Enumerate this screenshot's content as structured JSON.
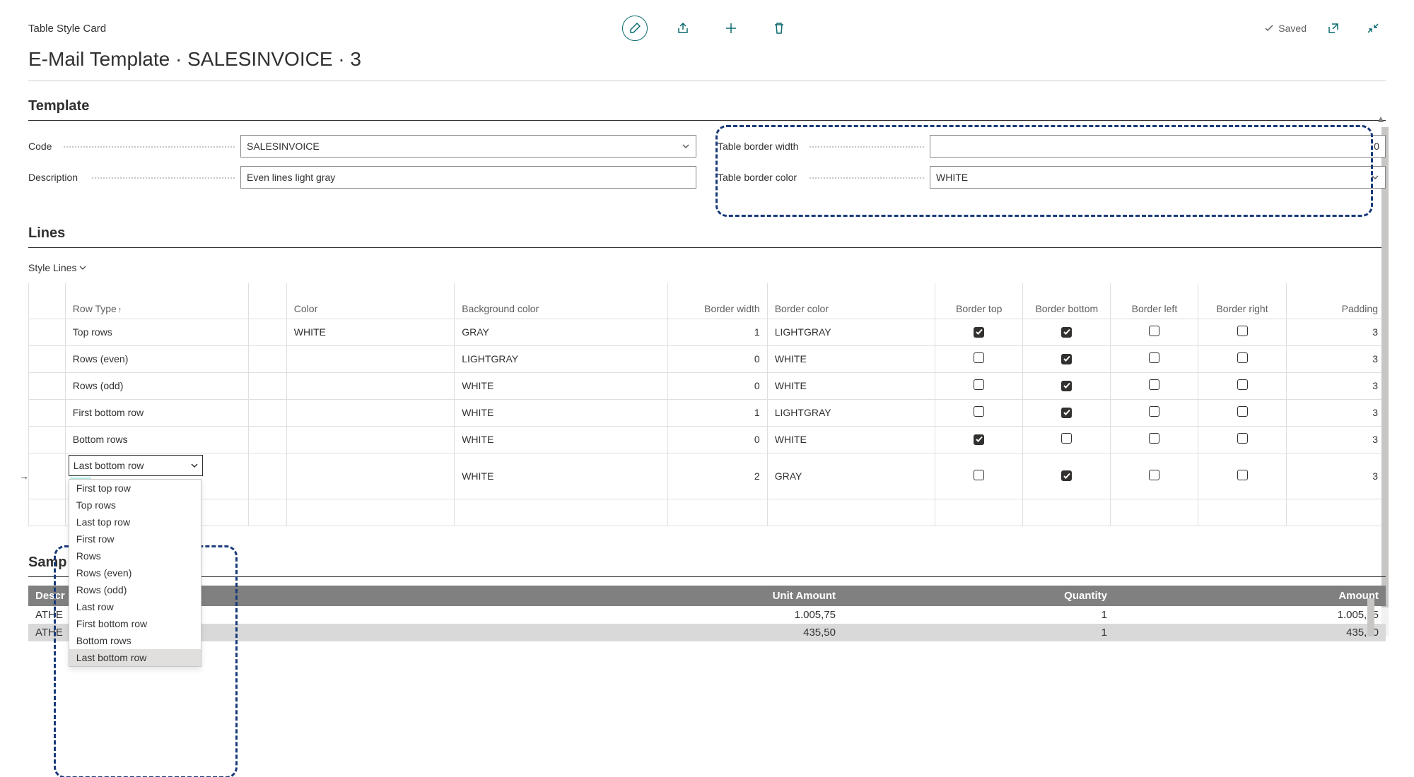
{
  "header": {
    "card_name": "Table Style Card",
    "saved_label": "Saved",
    "page_title": "E-Mail Template · SALESINVOICE · 3"
  },
  "template": {
    "section_title": "Template",
    "code_label": "Code",
    "code_value": "SALESINVOICE",
    "description_label": "Description",
    "description_value": "Even lines light gray",
    "border_width_label": "Table border width",
    "border_width_value": "0",
    "border_color_label": "Table border color",
    "border_color_value": "WHITE"
  },
  "lines": {
    "section_title": "Lines",
    "style_lines_label": "Style Lines",
    "columns": {
      "row_type": "Row Type",
      "color": "Color",
      "background_color": "Background color",
      "border_width": "Border width",
      "border_color": "Border color",
      "border_top": "Border top",
      "border_bottom": "Border bottom",
      "border_left": "Border left",
      "border_right": "Border right",
      "padding": "Padding"
    },
    "rows": [
      {
        "row_type": "Top rows",
        "color": "WHITE",
        "bg": "GRAY",
        "bw": "1",
        "bc": "LIGHTGRAY",
        "bt": true,
        "bb": true,
        "bl": false,
        "br": false,
        "pad": "3"
      },
      {
        "row_type": "Rows (even)",
        "color": "",
        "bg": "LIGHTGRAY",
        "bw": "0",
        "bc": "WHITE",
        "bt": false,
        "bb": true,
        "bl": false,
        "br": false,
        "pad": "3"
      },
      {
        "row_type": "Rows (odd)",
        "color": "",
        "bg": "WHITE",
        "bw": "0",
        "bc": "WHITE",
        "bt": false,
        "bb": true,
        "bl": false,
        "br": false,
        "pad": "3"
      },
      {
        "row_type": "First bottom row",
        "color": "",
        "bg": "WHITE",
        "bw": "1",
        "bc": "LIGHTGRAY",
        "bt": false,
        "bb": true,
        "bl": false,
        "br": false,
        "pad": "3"
      },
      {
        "row_type": "Bottom rows",
        "color": "",
        "bg": "WHITE",
        "bw": "0",
        "bc": "WHITE",
        "bt": true,
        "bb": false,
        "bl": false,
        "br": false,
        "pad": "3"
      }
    ],
    "selected_row": {
      "row_type": "Last bottom row",
      "color": "",
      "bg": "WHITE",
      "bw": "2",
      "bc": "GRAY",
      "bt": false,
      "bb": true,
      "bl": false,
      "br": false,
      "pad": "3"
    },
    "dropdown_options": [
      "First top row",
      "Top rows",
      "Last top row",
      "First row",
      "Rows",
      "Rows (even)",
      "Rows (odd)",
      "Last row",
      "First bottom row",
      "Bottom rows",
      "Last bottom row"
    ],
    "dropdown_selected": "Last bottom row"
  },
  "sample": {
    "section_title": "Samp",
    "columns": [
      "Descr",
      "Unit Amount",
      "Quantity",
      "Amount"
    ],
    "rows": [
      {
        "desc": "ATHE",
        "unit": "1.005,75",
        "qty": "1",
        "amt": "1.005,75",
        "even": false
      },
      {
        "desc": "ATHE",
        "unit": "435,50",
        "qty": "1",
        "amt": "435,50",
        "even": true
      }
    ]
  },
  "colors": {
    "accent": "#0b6a6f",
    "highlight_border": "#1a3a7a",
    "dd_handle_bg": "#b4f0ed",
    "sample_header_bg": "#808080"
  }
}
